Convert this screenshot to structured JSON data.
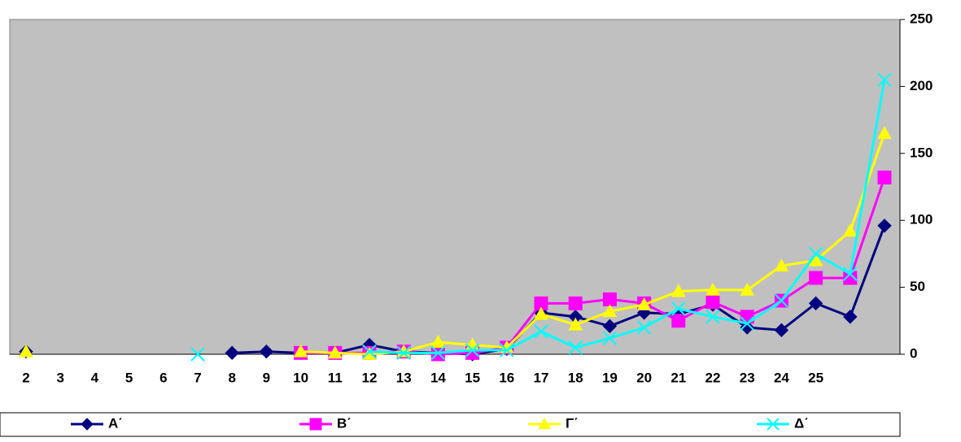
{
  "chart_data": {
    "type": "line",
    "categories": [
      "2",
      "3",
      "4",
      "5",
      "6",
      "7",
      "8",
      "9",
      "10",
      "11",
      "12",
      "13",
      "14",
      "15",
      "16",
      "17",
      "18",
      "19",
      "20",
      "21",
      "22",
      "23",
      "24",
      "25",
      null,
      null
    ],
    "series": [
      {
        "name": "Α΄",
        "color": "#000080",
        "marker": "diamond",
        "values": [
          2,
          null,
          null,
          null,
          null,
          null,
          1,
          2,
          1,
          1,
          7,
          2,
          1,
          0,
          4,
          31,
          28,
          21,
          31,
          30,
          37,
          20,
          18,
          38,
          28,
          96
        ]
      },
      {
        "name": "Β΄",
        "color": "#ff00ff",
        "marker": "square",
        "values": [
          null,
          null,
          null,
          null,
          null,
          null,
          null,
          null,
          1,
          1,
          1,
          2,
          0,
          1,
          5,
          38,
          38,
          41,
          38,
          25,
          39,
          28,
          40,
          57,
          57,
          132
        ]
      },
      {
        "name": "Γ΄",
        "color": "#ffff00",
        "marker": "triangle",
        "values": [
          2,
          null,
          null,
          null,
          null,
          null,
          null,
          null,
          2,
          1,
          0,
          2,
          9,
          7,
          5,
          30,
          22,
          32,
          37,
          47,
          48,
          48,
          66,
          70,
          92,
          165
        ]
      },
      {
        "name": "Δ΄",
        "color": "#00ffff",
        "marker": "cross",
        "values": [
          null,
          null,
          null,
          null,
          null,
          0,
          null,
          null,
          null,
          null,
          2,
          1,
          1,
          3,
          3,
          17,
          5,
          12,
          20,
          34,
          28,
          23,
          40,
          75,
          60,
          205
        ]
      }
    ],
    "ylim": [
      0,
      250
    ],
    "yticks": [
      0,
      50,
      100,
      150,
      200,
      250
    ],
    "grid": false,
    "legend": "bottom",
    "plot_background": "#c0c0c0"
  }
}
